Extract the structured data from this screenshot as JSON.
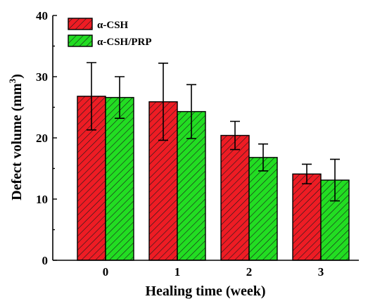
{
  "colors": {
    "series_0": "#ee1c24",
    "series_1": "#22dd22",
    "hatch": "#1a1a1a"
  },
  "chart_data": {
    "type": "bar",
    "categories": [
      "0",
      "1",
      "2",
      "3"
    ],
    "series": [
      {
        "name": "α-CSH",
        "values": [
          26.8,
          25.9,
          20.4,
          14.1
        ],
        "error": [
          5.5,
          6.3,
          2.3,
          1.6
        ]
      },
      {
        "name": "α-CSH/PRP",
        "values": [
          26.6,
          24.3,
          16.8,
          13.1
        ],
        "error": [
          3.4,
          4.4,
          2.2,
          3.4
        ]
      }
    ],
    "xlabel": "Healing time (week)",
    "ylabel": "Defect volume (mm",
    "ylabel_superscript": "3",
    "ylabel_suffix": ")",
    "ylim": [
      0,
      40
    ],
    "yticks": [
      "0",
      "10",
      "20",
      "30",
      "40"
    ],
    "grid": false,
    "legend_position": "top-left",
    "bar_fill": "diagonal hatch"
  }
}
